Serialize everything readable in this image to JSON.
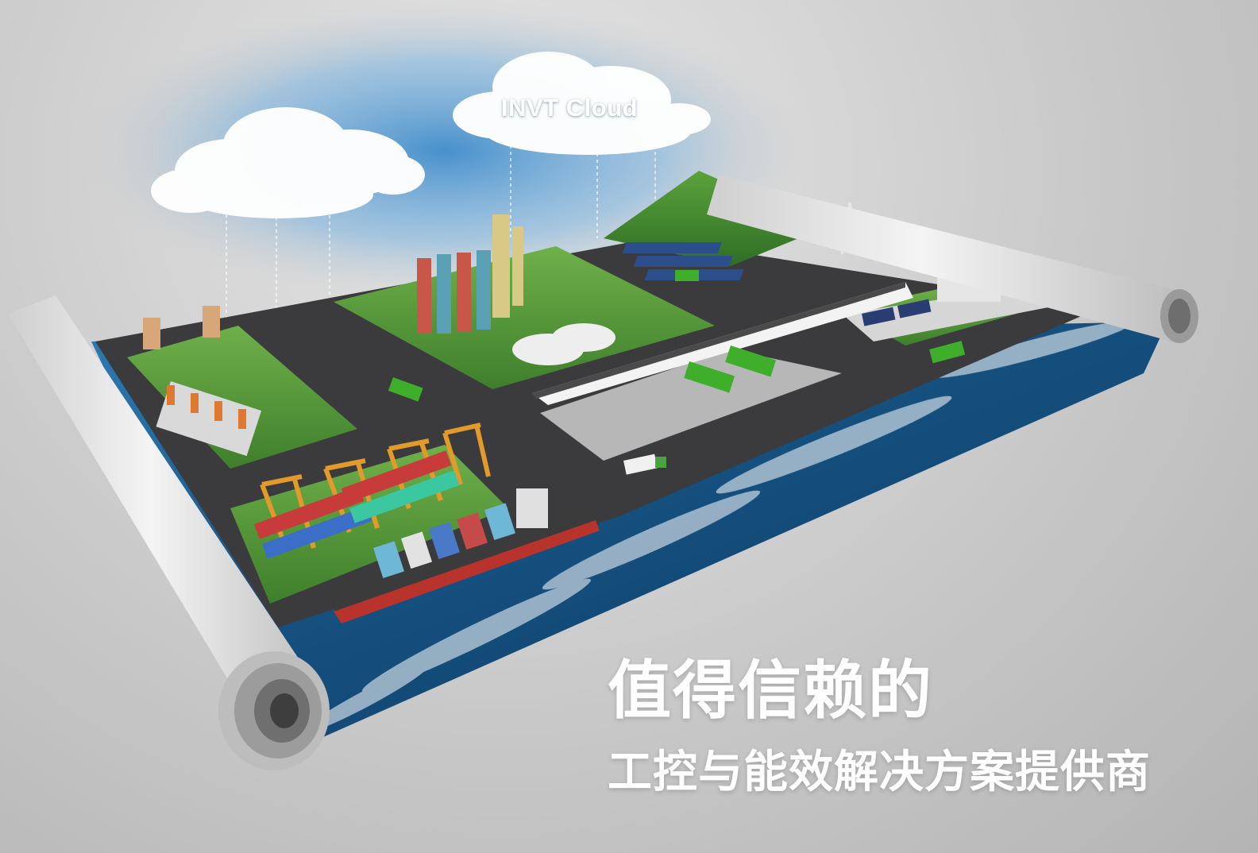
{
  "cloud": {
    "label": "INVT Cloud"
  },
  "tagline": {
    "headline": "值得信赖的",
    "subline": "工控与能效解决方案提供商"
  },
  "colors": {
    "background": "#c9c9c9",
    "sky": "#4a8fc8",
    "water": "#1f5f94",
    "grass": "#5a9a3a",
    "road": "#3a3a3a",
    "bus_green": "#3fae2a",
    "crane_orange": "#e29a2a",
    "text": "#ffffff"
  },
  "scene_elements": [
    "paper-roll-left",
    "paper-roll-right",
    "cloud-left",
    "cloud-center",
    "mountain",
    "refinery",
    "solar-panels",
    "power-tower",
    "high-speed-train",
    "charging-station",
    "green-buses",
    "robot-factory",
    "port-cranes",
    "container-ship",
    "ocean-waves",
    "data-center"
  ]
}
